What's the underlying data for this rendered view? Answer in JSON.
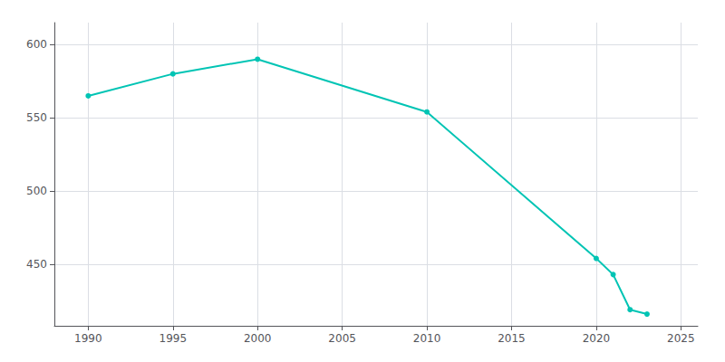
{
  "chart_data": {
    "type": "line",
    "x": [
      1990,
      1995,
      2000,
      2010,
      2020,
      2021,
      2022,
      2023
    ],
    "values": [
      565,
      580,
      590,
      554,
      454,
      443,
      419,
      416
    ],
    "color": "#00C4B4",
    "marker": "circle",
    "xlim": [
      1988,
      2026
    ],
    "xticks": [
      1990,
      1995,
      2000,
      2005,
      2010,
      2015,
      2020,
      2025
    ],
    "ylim": [
      408,
      615
    ],
    "yticks": [
      450,
      500,
      550,
      600
    ],
    "grid": true
  }
}
